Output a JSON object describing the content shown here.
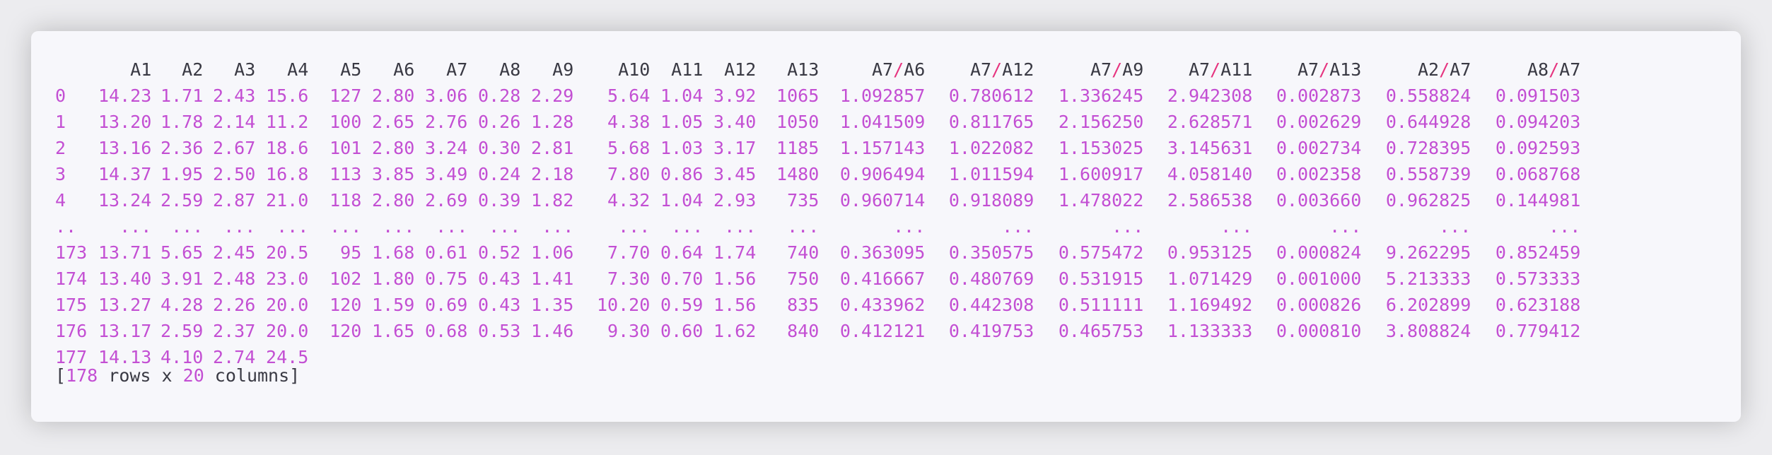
{
  "table": {
    "header_plain": [
      "A1",
      "A2",
      "A3",
      "A4",
      "A5",
      "A6",
      "A7",
      "A8",
      "A9",
      "A10",
      "A11",
      "A12",
      "A13"
    ],
    "header_ratio": [
      [
        "A7",
        "A6"
      ],
      [
        "A7",
        "A12"
      ],
      [
        "A7",
        "A9"
      ],
      [
        "A7",
        "A11"
      ],
      [
        "A7",
        "A13"
      ],
      [
        "A2",
        "A7"
      ],
      [
        "A8",
        "A7"
      ]
    ],
    "ratio_separator": "/",
    "rows": [
      [
        "0",
        "14.23",
        "1.71",
        "2.43",
        "15.6",
        "127",
        "2.80",
        "3.06",
        "0.28",
        "2.29",
        "5.64",
        "1.04",
        "3.92",
        "1065",
        "1.092857",
        "0.780612",
        "1.336245",
        "2.942308",
        "0.002873",
        "0.558824",
        "0.091503"
      ],
      [
        "1",
        "13.20",
        "1.78",
        "2.14",
        "11.2",
        "100",
        "2.65",
        "2.76",
        "0.26",
        "1.28",
        "4.38",
        "1.05",
        "3.40",
        "1050",
        "1.041509",
        "0.811765",
        "2.156250",
        "2.628571",
        "0.002629",
        "0.644928",
        "0.094203"
      ],
      [
        "2",
        "13.16",
        "2.36",
        "2.67",
        "18.6",
        "101",
        "2.80",
        "3.24",
        "0.30",
        "2.81",
        "5.68",
        "1.03",
        "3.17",
        "1185",
        "1.157143",
        "1.022082",
        "1.153025",
        "3.145631",
        "0.002734",
        "0.728395",
        "0.092593"
      ],
      [
        "3",
        "14.37",
        "1.95",
        "2.50",
        "16.8",
        "113",
        "3.85",
        "3.49",
        "0.24",
        "2.18",
        "7.80",
        "0.86",
        "3.45",
        "1480",
        "0.906494",
        "1.011594",
        "1.600917",
        "4.058140",
        "0.002358",
        "0.558739",
        "0.068768"
      ],
      [
        "4",
        "13.24",
        "2.59",
        "2.87",
        "21.0",
        "118",
        "2.80",
        "2.69",
        "0.39",
        "1.82",
        "4.32",
        "1.04",
        "2.93",
        "735",
        "0.960714",
        "0.918089",
        "1.478022",
        "2.586538",
        "0.003660",
        "0.962825",
        "0.144981"
      ],
      [
        "..",
        "...",
        "...",
        "...",
        "...",
        "...",
        "...",
        "...",
        "...",
        "...",
        "...",
        "...",
        "...",
        "...",
        "...",
        "...",
        "...",
        "...",
        "...",
        "...",
        "..."
      ],
      [
        "173",
        "13.71",
        "5.65",
        "2.45",
        "20.5",
        "95",
        "1.68",
        "0.61",
        "0.52",
        "1.06",
        "7.70",
        "0.64",
        "1.74",
        "740",
        "0.363095",
        "0.350575",
        "0.575472",
        "0.953125",
        "0.000824",
        "9.262295",
        "0.852459"
      ],
      [
        "174",
        "13.40",
        "3.91",
        "2.48",
        "23.0",
        "102",
        "1.80",
        "0.75",
        "0.43",
        "1.41",
        "7.30",
        "0.70",
        "1.56",
        "750",
        "0.416667",
        "0.480769",
        "0.531915",
        "1.071429",
        "0.001000",
        "5.213333",
        "0.573333"
      ],
      [
        "175",
        "13.27",
        "4.28",
        "2.26",
        "20.0",
        "120",
        "1.59",
        "0.69",
        "0.43",
        "1.35",
        "10.20",
        "0.59",
        "1.56",
        "835",
        "0.433962",
        "0.442308",
        "0.511111",
        "1.169492",
        "0.000826",
        "6.202899",
        "0.623188"
      ],
      [
        "176",
        "13.17",
        "2.59",
        "2.37",
        "20.0",
        "120",
        "1.65",
        "0.68",
        "0.53",
        "1.46",
        "9.30",
        "0.60",
        "1.62",
        "840",
        "0.412121",
        "0.419753",
        "0.465753",
        "1.133333",
        "0.000810",
        "3.808824",
        "0.779412"
      ],
      [
        "177",
        "14.13",
        "4.10",
        "2.74",
        "24.5",
        "",
        "",
        "",
        "",
        "",
        "",
        "",
        "",
        "",
        "",
        "",
        "",
        "",
        "",
        "",
        ""
      ]
    ]
  },
  "footer": {
    "open": "[",
    "rows_count": "178",
    "rows_word": " rows x ",
    "cols_count": "20",
    "cols_word": " columns]"
  },
  "colors": {
    "value": "#c34fd3",
    "slash": "#e6347f",
    "header": "#3a3a44",
    "panel": "#f7f7fb"
  }
}
